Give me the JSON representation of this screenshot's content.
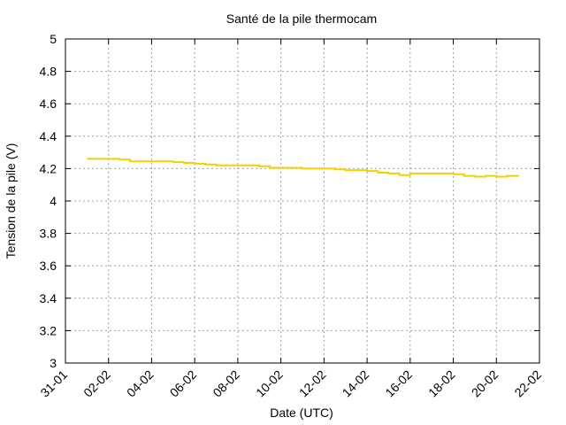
{
  "chart_data": {
    "type": "line",
    "title": "Santé de la pile thermocam",
    "xlabel": "Date (UTC)",
    "ylabel": "Tension de la pile (V)",
    "x_tick_labels": [
      "31-01",
      "02-02",
      "04-02",
      "06-02",
      "08-02",
      "10-02",
      "12-02",
      "14-02",
      "16-02",
      "18-02",
      "20-02",
      "22-02"
    ],
    "y_tick_labels": [
      "3",
      "3.2",
      "3.4",
      "3.6",
      "3.8",
      "4",
      "4.2",
      "4.4",
      "4.6",
      "4.8",
      "5"
    ],
    "xlim": [
      "31-01",
      "22-02"
    ],
    "ylim": [
      3,
      5
    ],
    "grid": true,
    "legend": "none",
    "series": [
      {
        "color": "#f5cf00",
        "x": [
          "01-02",
          "02-02",
          "02-02",
          "03-02",
          "04-02",
          "05-02",
          "05-02",
          "06-02",
          "06-02",
          "07-02",
          "08-02",
          "09-02",
          "09-02",
          "10-02",
          "11-02",
          "12-02",
          "12-02",
          "13-02",
          "14-02",
          "14-02",
          "15-02",
          "15-02",
          "16-02",
          "17-02",
          "18-02",
          "18-02",
          "19-02",
          "19-02",
          "20-02",
          "20-02",
          "21-02"
        ],
        "y": [
          4.26,
          4.26,
          4.255,
          4.245,
          4.245,
          4.24,
          4.235,
          4.23,
          4.225,
          4.22,
          4.22,
          4.215,
          4.205,
          4.205,
          4.2,
          4.2,
          4.195,
          4.19,
          4.185,
          4.175,
          4.17,
          4.16,
          4.17,
          4.17,
          4.165,
          4.155,
          4.15,
          4.155,
          4.15,
          4.155,
          4.15
        ]
      }
    ]
  }
}
